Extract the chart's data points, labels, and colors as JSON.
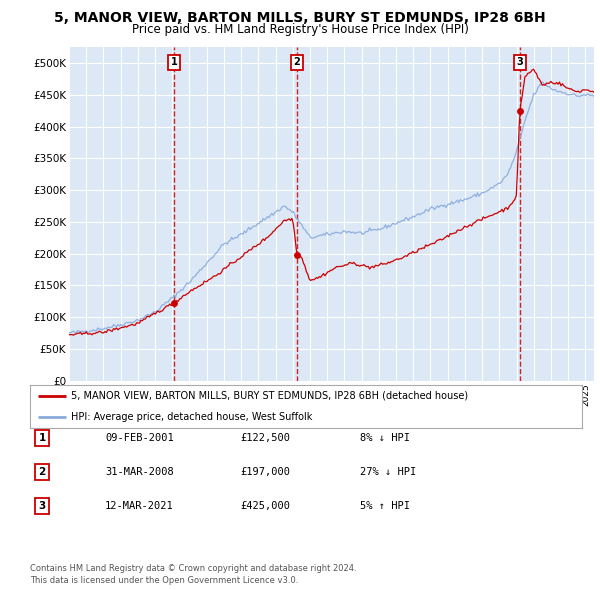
{
  "title": "5, MANOR VIEW, BARTON MILLS, BURY ST EDMUNDS, IP28 6BH",
  "subtitle": "Price paid vs. HM Land Registry's House Price Index (HPI)",
  "title_fontsize": 10,
  "subtitle_fontsize": 8.5,
  "ylim": [
    0,
    525000
  ],
  "yticks": [
    0,
    50000,
    100000,
    150000,
    200000,
    250000,
    300000,
    350000,
    400000,
    450000,
    500000
  ],
  "ytick_labels": [
    "£0",
    "£50K",
    "£100K",
    "£150K",
    "£200K",
    "£250K",
    "£300K",
    "£350K",
    "£400K",
    "£450K",
    "£500K"
  ],
  "background_color": "#ffffff",
  "plot_bg_color": "#dce8f5",
  "grid_color": "#ffffff",
  "sale_dates": [
    2001.1,
    2008.25,
    2021.19
  ],
  "sale_prices": [
    122500,
    197000,
    425000
  ],
  "sale_labels": [
    "1",
    "2",
    "3"
  ],
  "sale_color": "#cc0000",
  "hpi_color": "#88aadd",
  "legend_entries": [
    "5, MANOR VIEW, BARTON MILLS, BURY ST EDMUNDS, IP28 6BH (detached house)",
    "HPI: Average price, detached house, West Suffolk"
  ],
  "table_data": [
    [
      "1",
      "09-FEB-2001",
      "£122,500",
      "8% ↓ HPI"
    ],
    [
      "2",
      "31-MAR-2008",
      "£197,000",
      "27% ↓ HPI"
    ],
    [
      "3",
      "12-MAR-2021",
      "£425,000",
      "5% ↑ HPI"
    ]
  ],
  "footer": "Contains HM Land Registry data © Crown copyright and database right 2024.\nThis data is licensed under the Open Government Licence v3.0.",
  "xmin": 1995,
  "xmax": 2025.5
}
